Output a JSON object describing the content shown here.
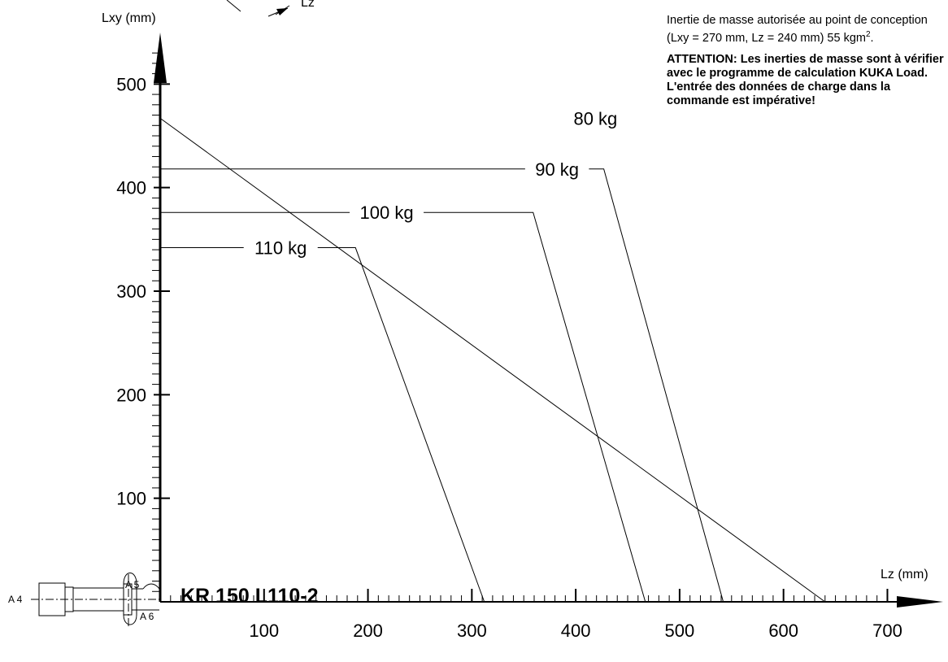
{
  "chart_data": {
    "type": "line",
    "xlabel": "Lz (mm)",
    "ylabel": "Lxy (mm)",
    "xlim": [
      0,
      750
    ],
    "ylim": [
      0,
      540
    ],
    "x_ticks": [
      100,
      200,
      300,
      400,
      500,
      600,
      700
    ],
    "y_ticks": [
      100,
      200,
      300,
      400,
      500
    ],
    "series": [
      {
        "name": "80 kg",
        "points": [
          [
            0,
            467
          ],
          [
            640,
            0
          ]
        ]
      },
      {
        "name": "90 kg",
        "points": [
          [
            0,
            418
          ],
          [
            427,
            418
          ],
          [
            542,
            0
          ]
        ]
      },
      {
        "name": "100 kg",
        "points": [
          [
            0,
            376
          ],
          [
            359,
            376
          ],
          [
            467,
            0
          ]
        ]
      },
      {
        "name": "110 kg",
        "points": [
          [
            0,
            342
          ],
          [
            188,
            342
          ],
          [
            312,
            0
          ]
        ]
      }
    ],
    "model": "KR 150 L110-2",
    "flange_labels": {
      "a4": "A 4",
      "a5": "A 5",
      "a6": "A 6",
      "lz_small": "Lz"
    },
    "notes": {
      "inertia_text": "Inertie de masse autorisée au point de conception  (Lxy = 270 mm, Lz = 240 mm) 55 kgm",
      "inertia_superscript": "2",
      "inertia_end": ".",
      "warning": "ATTENTION: Les inerties de masse sont à vérifier avec le programme de calculation KUKA Load. L'entrée des données de charge dans la commande est impérative!"
    }
  }
}
